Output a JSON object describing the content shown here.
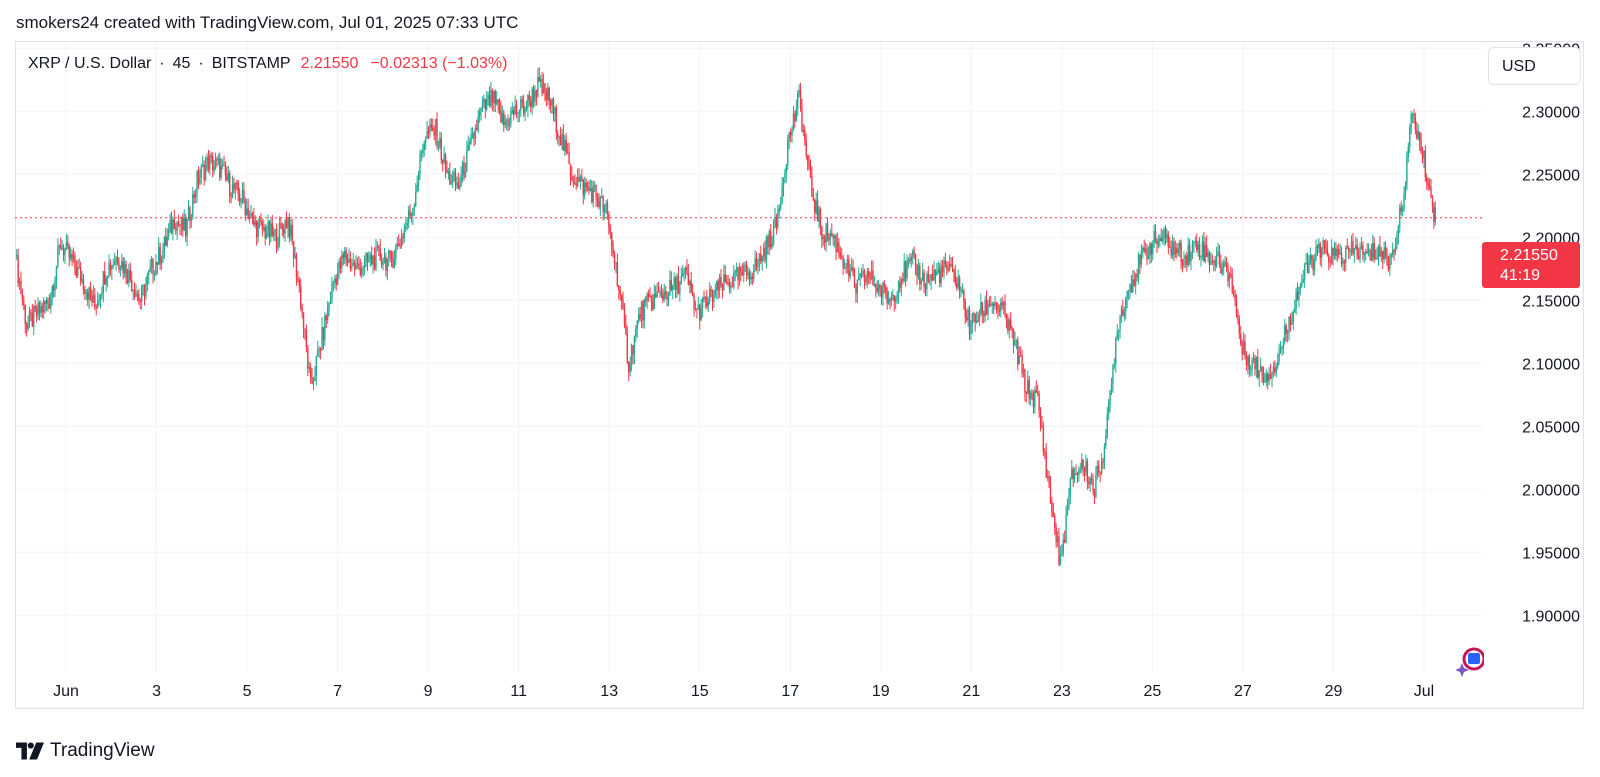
{
  "attribution": "smokers24 created with TradingView.com, Jul 01, 2025 07:33 UTC",
  "legend": {
    "symbol": "XRP / U.S. Dollar",
    "interval": "45",
    "exchange": "BITSTAMP",
    "dot": "·",
    "last": "2.21550",
    "change": "−0.02313 (−1.03%)"
  },
  "currency_button": "USD",
  "price_label": {
    "price": "2.21550",
    "countdown": "41:19"
  },
  "footer": {
    "brand": "TradingView"
  },
  "colors": {
    "up": "#22ab94",
    "down": "#f23645",
    "grid": "#f0f3fa",
    "price_line": "#f23645"
  },
  "chart_data": {
    "type": "line",
    "title": "XRP / U.S. Dollar · 45 · BITSTAMP",
    "xlabel": "",
    "ylabel": "",
    "x_ticks": [
      "Jun",
      "3",
      "5",
      "7",
      "9",
      "11",
      "13",
      "15",
      "17",
      "19",
      "21",
      "23",
      "25",
      "27",
      "29",
      "Jul"
    ],
    "y_ticks": [
      "1.90000",
      "1.95000",
      "2.00000",
      "2.05000",
      "2.10000",
      "2.15000",
      "2.20000",
      "2.25000",
      "2.30000",
      "2.35000"
    ],
    "ylim": [
      1.855,
      2.355
    ],
    "current_price": 2.2155,
    "series": [
      {
        "x": [
          "May 31 00:00",
          "May 31 06:00",
          "May 31 12:00",
          "May 31 18:00",
          "Jun 1 00:00",
          "Jun 1 06:00",
          "Jun 1 12:00",
          "Jun 1 18:00",
          "Jun 2 00:00",
          "Jun 2 06:00",
          "Jun 2 12:00",
          "Jun 2 18:00",
          "Jun 3 00:00",
          "Jun 3 06:00",
          "Jun 3 12:00",
          "Jun 3 18:00",
          "Jun 4 00:00",
          "Jun 4 06:00",
          "Jun 4 12:00",
          "Jun 4 18:00",
          "Jun 5 00:00",
          "Jun 5 06:00",
          "Jun 5 12:00",
          "Jun 5 18:00",
          "Jun 6 00:00",
          "Jun 6 06:00",
          "Jun 6 12:00",
          "Jun 6 18:00",
          "Jun 7 00:00",
          "Jun 7 06:00",
          "Jun 7 12:00",
          "Jun 7 18:00",
          "Jun 8 00:00",
          "Jun 8 06:00",
          "Jun 8 12:00",
          "Jun 8 18:00",
          "Jun 9 00:00",
          "Jun 9 06:00",
          "Jun 9 12:00",
          "Jun 9 18:00",
          "Jun 10 00:00",
          "Jun 10 06:00",
          "Jun 10 12:00",
          "Jun 10 18:00",
          "Jun 11 00:00",
          "Jun 11 06:00",
          "Jun 11 12:00",
          "Jun 11 18:00",
          "Jun 12 00:00",
          "Jun 12 06:00",
          "Jun 12 12:00",
          "Jun 12 18:00",
          "Jun 13 00:00",
          "Jun 13 06:00",
          "Jun 13 12:00",
          "Jun 13 18:00",
          "Jun 14 00:00",
          "Jun 14 06:00",
          "Jun 14 12:00",
          "Jun 14 18:00",
          "Jun 15 00:00",
          "Jun 15 06:00",
          "Jun 15 12:00",
          "Jun 15 18:00",
          "Jun 16 00:00",
          "Jun 16 06:00",
          "Jun 16 12:00",
          "Jun 16 18:00",
          "Jun 17 00:00",
          "Jun 17 06:00",
          "Jun 17 12:00",
          "Jun 17 18:00",
          "Jun 18 00:00",
          "Jun 18 06:00",
          "Jun 18 12:00",
          "Jun 18 18:00",
          "Jun 19 00:00",
          "Jun 19 06:00",
          "Jun 19 12:00",
          "Jun 19 18:00",
          "Jun 20 00:00",
          "Jun 20 06:00",
          "Jun 20 12:00",
          "Jun 20 18:00",
          "Jun 21 00:00",
          "Jun 21 06:00",
          "Jun 21 12:00",
          "Jun 21 18:00",
          "Jun 22 00:00",
          "Jun 22 06:00",
          "Jun 22 12:00",
          "Jun 22 18:00",
          "Jun 23 00:00",
          "Jun 23 06:00",
          "Jun 23 12:00",
          "Jun 23 18:00",
          "Jun 24 00:00",
          "Jun 24 06:00",
          "Jun 24 12:00",
          "Jun 24 18:00",
          "Jun 25 00:00",
          "Jun 25 06:00",
          "Jun 25 12:00",
          "Jun 25 18:00",
          "Jun 26 00:00",
          "Jun 26 06:00",
          "Jun 26 12:00",
          "Jun 26 18:00",
          "Jun 27 00:00",
          "Jun 27 06:00",
          "Jun 27 12:00",
          "Jun 27 18:00",
          "Jun 28 00:00",
          "Jun 28 06:00",
          "Jun 28 12:00",
          "Jun 28 18:00",
          "Jun 29 00:00",
          "Jun 29 06:00",
          "Jun 29 12:00",
          "Jun 29 18:00",
          "Jun 30 00:00",
          "Jun 30 06:00",
          "Jun 30 12:00",
          "Jun 30 18:00",
          "Jul 1 00:00",
          "Jul 1 06:00"
        ],
        "values": [
          2.185,
          2.13,
          2.14,
          2.15,
          2.195,
          2.18,
          2.165,
          2.145,
          2.175,
          2.185,
          2.17,
          2.15,
          2.175,
          2.19,
          2.215,
          2.205,
          2.245,
          2.26,
          2.255,
          2.24,
          2.23,
          2.21,
          2.205,
          2.2,
          2.215,
          2.16,
          2.08,
          2.12,
          2.165,
          2.185,
          2.175,
          2.18,
          2.185,
          2.18,
          2.2,
          2.225,
          2.28,
          2.285,
          2.25,
          2.24,
          2.27,
          2.3,
          2.31,
          2.29,
          2.3,
          2.305,
          2.32,
          2.31,
          2.28,
          2.25,
          2.24,
          2.235,
          2.22,
          2.17,
          2.1,
          2.14,
          2.15,
          2.155,
          2.16,
          2.17,
          2.14,
          2.15,
          2.16,
          2.165,
          2.17,
          2.175,
          2.19,
          2.21,
          2.275,
          2.31,
          2.24,
          2.205,
          2.2,
          2.18,
          2.16,
          2.17,
          2.16,
          2.15,
          2.17,
          2.18,
          2.165,
          2.17,
          2.175,
          2.165,
          2.13,
          2.14,
          2.15,
          2.14,
          2.115,
          2.08,
          2.07,
          2.0,
          1.94,
          2.01,
          2.02,
          2.0,
          2.04,
          2.13,
          2.16,
          2.18,
          2.195,
          2.2,
          2.19,
          2.185,
          2.195,
          2.185,
          2.18,
          2.17,
          2.11,
          2.1,
          2.09,
          2.1,
          2.13,
          2.16,
          2.18,
          2.19,
          2.185,
          2.185,
          2.19,
          2.185,
          2.19,
          2.18,
          2.22,
          2.3,
          2.26,
          2.2155
        ]
      }
    ]
  }
}
